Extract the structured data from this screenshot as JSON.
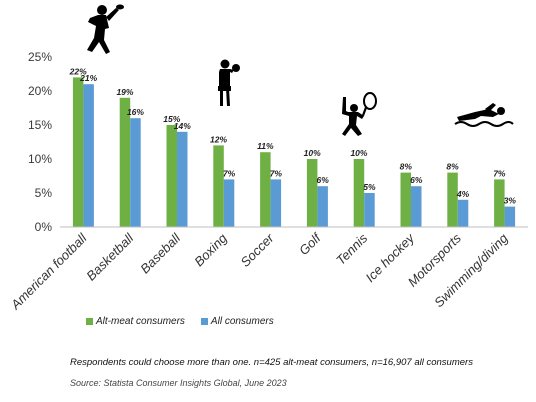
{
  "chart_data": {
    "type": "bar",
    "categories": [
      "American football",
      "Basketball",
      "Baseball",
      "Boxing",
      "Soccer",
      "Golf",
      "Tennis",
      "Ice hockey",
      "Motorsports",
      "Swimming/diving"
    ],
    "series": [
      {
        "name": "Alt-meat consumers",
        "values": [
          22,
          19,
          15,
          12,
          11,
          10,
          10,
          8,
          8,
          7
        ],
        "color": "#6fb045"
      },
      {
        "name": "All consumers",
        "values": [
          21,
          16,
          14,
          7,
          7,
          6,
          5,
          6,
          4,
          3
        ],
        "color": "#5b9bd5"
      }
    ],
    "yticks": [
      "0%",
      "5%",
      "10%",
      "15%",
      "20%",
      "25%"
    ],
    "ylim": [
      0,
      25
    ],
    "grid": false,
    "legend_position": "bottom-left",
    "value_suffix": "%"
  },
  "icons": [
    "football-player-icon",
    "boxer-icon",
    "tennis-player-icon",
    "swimmer-icon"
  ],
  "footnote": {
    "note": "Respondents could choose more than one. n=425 alt-meat consumers, n=16,907 all consumers",
    "source": "Source: Statista Consumer Insights Global, June 2023"
  }
}
